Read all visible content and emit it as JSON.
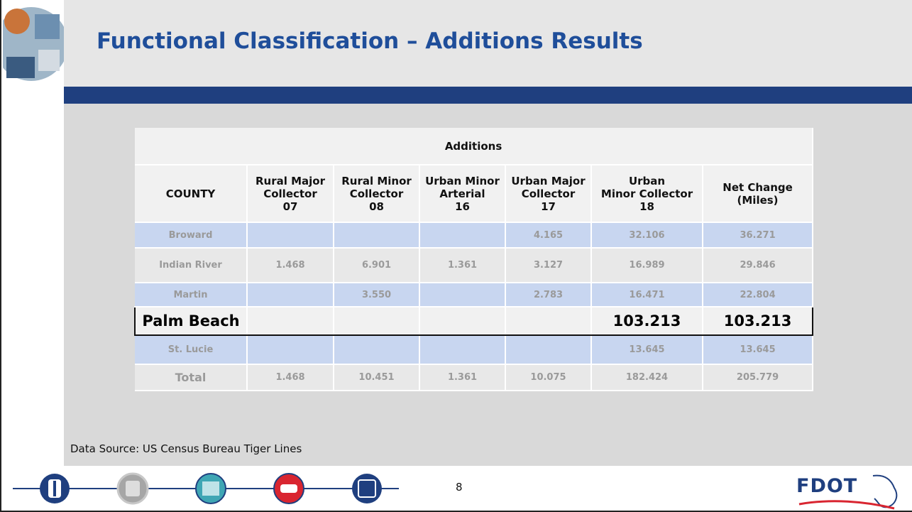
{
  "header": {
    "title": "Functional Classification – Additions Results"
  },
  "table": {
    "group_header": "Additions",
    "columns": [
      [
        "COUNTY"
      ],
      [
        "Rural Major",
        "Collector",
        "07"
      ],
      [
        "Rural Minor",
        "Collector",
        "08"
      ],
      [
        "Urban Minor",
        "Arterial",
        "16"
      ],
      [
        "Urban Major",
        "Collector",
        "17"
      ],
      [
        "Urban",
        "Minor Collector",
        "18"
      ],
      [
        "Net Change",
        "(Miles)"
      ]
    ],
    "rows": [
      [
        "Broward",
        null,
        null,
        null,
        "4.165",
        "32.106",
        "36.271"
      ],
      [
        "Indian River",
        "1.468",
        "6.901",
        "1.361",
        "3.127",
        "16.989",
        "29.846"
      ],
      [
        "Martin",
        null,
        "3.550",
        null,
        "2.783",
        "16.471",
        "22.804"
      ],
      [
        "Palm Beach",
        null,
        null,
        null,
        null,
        "103.213",
        "103.213"
      ],
      [
        "St. Lucie",
        null,
        null,
        null,
        null,
        "13.645",
        "13.645"
      ],
      [
        "Total",
        "1.468",
        "10.451",
        "1.361",
        "10.075",
        "182.424",
        "205.779"
      ]
    ]
  },
  "source": "Data Source: US Census Bureau Tiger Lines",
  "page_number": "8",
  "logo": "FDOT"
}
